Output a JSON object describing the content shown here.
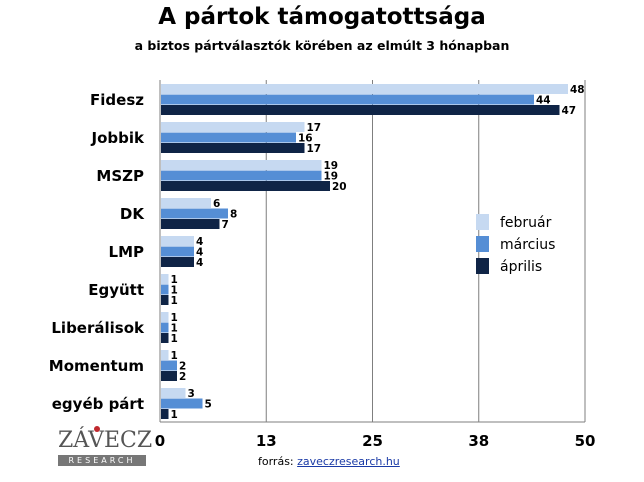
{
  "chart_data": {
    "type": "bar",
    "orientation": "horizontal",
    "title": "A pártok támogatottsága",
    "subtitle": "a biztos pártválasztók körében az elmúlt 3 hónapban",
    "categories": [
      "Fidesz",
      "Jobbik",
      "MSZP",
      "DK",
      "LMP",
      "Együtt",
      "Liberálisok",
      "Momentum",
      "egyéb párt"
    ],
    "series": [
      {
        "name": "február",
        "color": "#c6d9f1",
        "values": [
          48,
          17,
          19,
          6,
          4,
          1,
          1,
          1,
          3
        ]
      },
      {
        "name": "március",
        "color": "#558ed5",
        "values": [
          44,
          16,
          19,
          8,
          4,
          1,
          1,
          2,
          5
        ]
      },
      {
        "name": "április",
        "color": "#0f2446",
        "values": [
          47,
          17,
          20,
          7,
          4,
          1,
          1,
          2,
          1
        ]
      }
    ],
    "xlim": [
      0,
      50
    ],
    "xticks": [
      "0",
      "13",
      "25",
      "38",
      "50"
    ],
    "grid": true,
    "legend_position": "right"
  },
  "source": {
    "label": "forrás:",
    "url": "zaveczresearch.hu"
  },
  "logo": {
    "name": "ZÁVECZ",
    "tagline": "RESEARCH"
  }
}
